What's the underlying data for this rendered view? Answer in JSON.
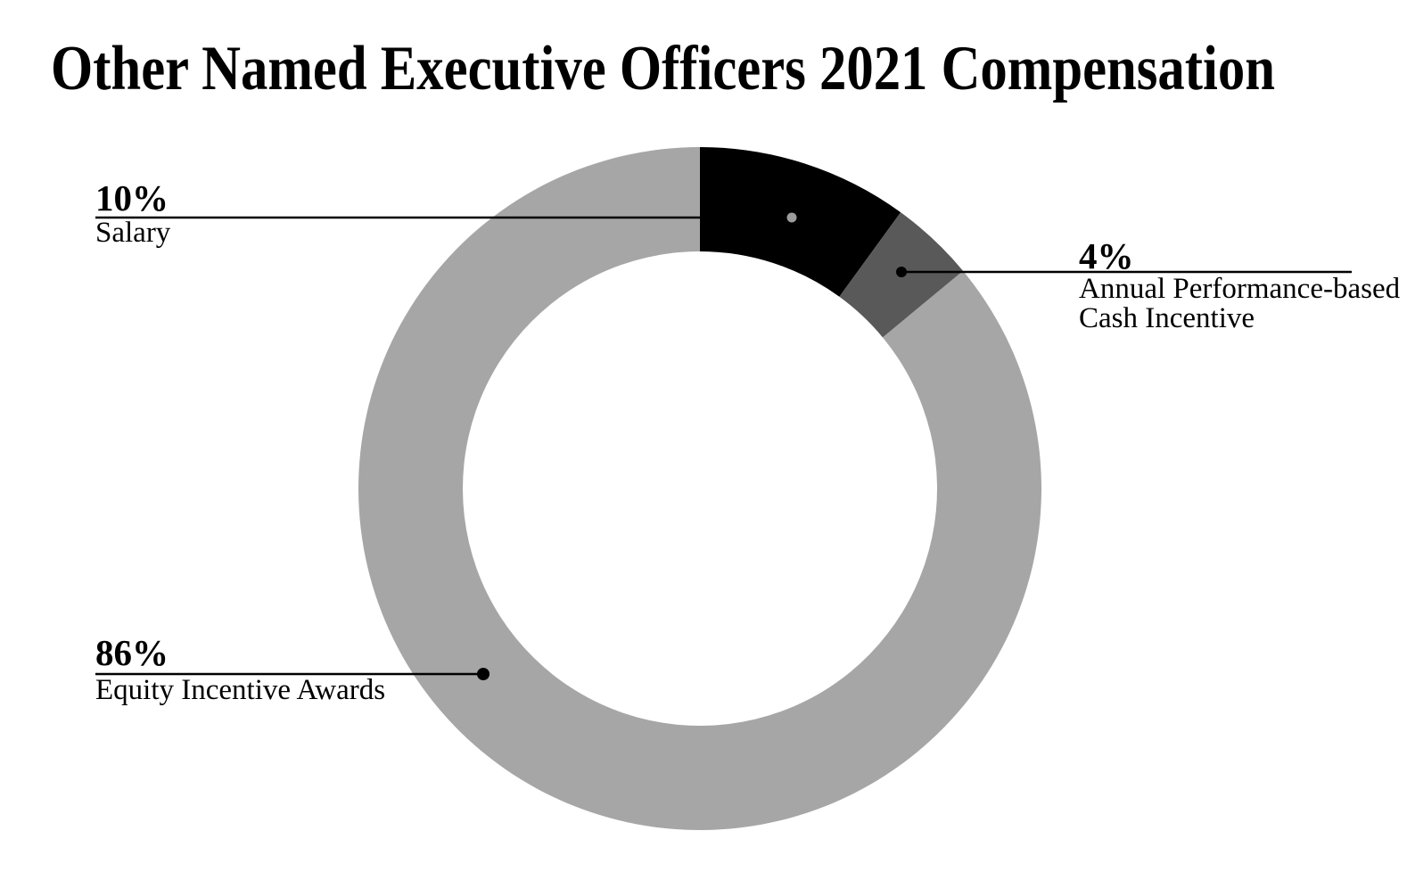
{
  "title": "Other Named Executive Officers 2021 Compensation",
  "chart_data": {
    "type": "pie",
    "subtype": "donut",
    "title": "Other Named Executive Officers 2021 Compensation",
    "start_angle_deg": 0,
    "direction": "clockwise",
    "inner_radius_ratio": 0.69,
    "legend_position": "callout-labels",
    "slices": [
      {
        "id": "salary",
        "label": "Salary",
        "value_pct": 10,
        "color": "#000000"
      },
      {
        "id": "cash-incentive",
        "label": "Annual Performance-based Cash Incentive",
        "value_pct": 4,
        "color": "#595959"
      },
      {
        "id": "equity-awards",
        "label": "Equity Incentive Awards",
        "value_pct": 86,
        "color": "#a6a6a6"
      }
    ]
  },
  "callouts": [
    {
      "pct": "10%",
      "name": "Salary"
    },
    {
      "pct": "4%",
      "name": "Annual Performance-based\nCash Incentive"
    },
    {
      "pct": "86%",
      "name": "Equity Incentive Awards"
    }
  ],
  "colors": {
    "background": "#ffffff",
    "text": "#000000",
    "leader_line": "#000000",
    "salary_anchor_dot": "#9c9c9c",
    "anchor_dot": "#000000"
  }
}
